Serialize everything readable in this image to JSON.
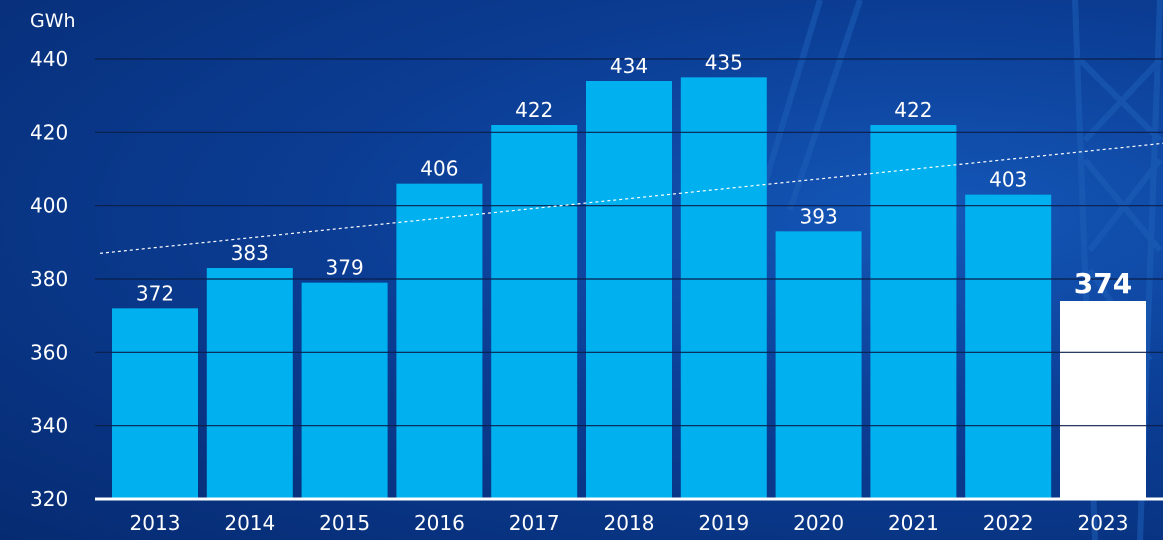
{
  "chart_data": {
    "type": "bar",
    "ylabel": "GWh",
    "ylim": [
      320,
      440
    ],
    "yticks": [
      320,
      340,
      360,
      380,
      400,
      420,
      440
    ],
    "categories": [
      "2013",
      "2014",
      "2015",
      "2016",
      "2017",
      "2018",
      "2019",
      "2020",
      "2021",
      "2022",
      "2023"
    ],
    "values": [
      372,
      383,
      379,
      406,
      422,
      434,
      435,
      393,
      422,
      403,
      374
    ],
    "value_labels": [
      "372",
      "383",
      "379",
      "406",
      "422",
      "434",
      "435",
      "393",
      "422",
      "403",
      "374"
    ],
    "highlight_index": 10,
    "trendline": {
      "style": "dotted",
      "start": 387,
      "end": 417
    },
    "grid": true,
    "colors": {
      "bar": "#00b0ef",
      "highlight_bar": "#ffffff",
      "gridline": "#0a1f4a",
      "text": "#ffffff",
      "background": "#0b3d94"
    }
  }
}
